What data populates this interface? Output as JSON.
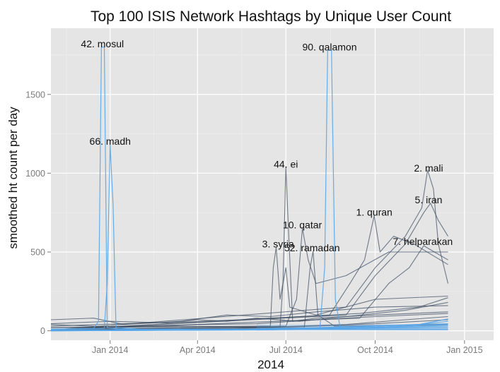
{
  "chart_data": {
    "type": "line",
    "title": "Top 100 ISIS Network Hashtags by Unique User Count",
    "xlabel": "2014",
    "ylabel": "smoothed ht count per day",
    "x_axis_type": "date",
    "xlim": [
      "2013-11-01",
      "2015-01-31"
    ],
    "ylim": [
      -60,
      1920
    ],
    "x_ticks": [
      {
        "date": "2014-01-01",
        "label": "Jan 2014"
      },
      {
        "date": "2014-04-01",
        "label": "Apr 2014"
      },
      {
        "date": "2014-07-01",
        "label": "Jul 2014"
      },
      {
        "date": "2014-10-01",
        "label": "Oct 2014"
      },
      {
        "date": "2015-01-01",
        "label": "Jan 2015"
      }
    ],
    "y_ticks": [
      0,
      500,
      1000,
      1500
    ],
    "grid": true,
    "background": "#e5e5e5",
    "line_color_dark": "#3b4a5f",
    "line_color_light": "#56a5e8",
    "annotations": [
      {
        "label": "42. mosul",
        "date": "2013-12-24",
        "y": 1800
      },
      {
        "label": "66. madh",
        "date": "2014-01-01",
        "y": 1180
      },
      {
        "label": "90. qalamon",
        "date": "2014-08-15",
        "y": 1780
      },
      {
        "label": "44. ei",
        "date": "2014-07-01",
        "y": 1035
      },
      {
        "label": "3. syria",
        "date": "2014-06-23",
        "y": 530
      },
      {
        "label": "10. qatar",
        "date": "2014-07-18",
        "y": 650
      },
      {
        "label": "52. ramadan",
        "date": "2014-07-28",
        "y": 505
      },
      {
        "label": "1. quran",
        "date": "2014-09-30",
        "y": 730
      },
      {
        "label": "2. mali",
        "date": "2014-11-25",
        "y": 1010
      },
      {
        "label": "5. iran",
        "date": "2014-11-25",
        "y": 810
      },
      {
        "label": "7. helparakan",
        "date": "2014-11-19",
        "y": 545
      }
    ],
    "series": [
      {
        "highlight": true,
        "values": [
          [
            "2013-11-01",
            10
          ],
          [
            "2013-12-15",
            15
          ],
          [
            "2013-12-20",
            60
          ],
          [
            "2013-12-23",
            1800
          ],
          [
            "2013-12-26",
            1800
          ],
          [
            "2013-12-29",
            20
          ],
          [
            "2014-01-10",
            10
          ],
          [
            "2014-12-15",
            10
          ]
        ]
      },
      {
        "highlight": true,
        "values": [
          [
            "2013-11-01",
            8
          ],
          [
            "2013-12-26",
            15
          ],
          [
            "2013-12-29",
            300
          ],
          [
            "2014-01-01",
            1180
          ],
          [
            "2014-01-04",
            800
          ],
          [
            "2014-01-07",
            20
          ],
          [
            "2014-02-01",
            10
          ],
          [
            "2014-12-15",
            8
          ]
        ]
      },
      {
        "highlight": true,
        "values": [
          [
            "2013-11-01",
            5
          ],
          [
            "2014-08-05",
            12
          ],
          [
            "2014-08-10",
            400
          ],
          [
            "2014-08-13",
            1780
          ],
          [
            "2014-08-17",
            1780
          ],
          [
            "2014-08-21",
            200
          ],
          [
            "2014-08-26",
            15
          ],
          [
            "2014-12-15",
            20
          ]
        ]
      },
      {
        "highlight": false,
        "values": [
          [
            "2013-11-01",
            10
          ],
          [
            "2014-06-25",
            25
          ],
          [
            "2014-06-28",
            300
          ],
          [
            "2014-07-01",
            1040
          ],
          [
            "2014-07-04",
            600
          ],
          [
            "2014-07-08",
            60
          ],
          [
            "2014-08-01",
            80
          ],
          [
            "2014-10-01",
            100
          ],
          [
            "2014-12-15",
            120
          ]
        ]
      },
      {
        "highlight": false,
        "values": [
          [
            "2013-11-01",
            20
          ],
          [
            "2014-06-15",
            30
          ],
          [
            "2014-06-18",
            400
          ],
          [
            "2014-06-21",
            530
          ],
          [
            "2014-06-25",
            200
          ],
          [
            "2014-07-01",
            400
          ],
          [
            "2014-07-05",
            150
          ],
          [
            "2014-08-01",
            100
          ],
          [
            "2014-10-01",
            200
          ],
          [
            "2014-12-15",
            220
          ]
        ]
      },
      {
        "highlight": false,
        "values": [
          [
            "2013-11-01",
            5
          ],
          [
            "2014-07-01",
            30
          ],
          [
            "2014-07-12",
            200
          ],
          [
            "2014-07-18",
            650
          ],
          [
            "2014-07-24",
            450
          ],
          [
            "2014-08-01",
            300
          ],
          [
            "2014-09-01",
            350
          ],
          [
            "2014-10-15",
            500
          ],
          [
            "2014-12-15",
            500
          ]
        ]
      },
      {
        "highlight": false,
        "values": [
          [
            "2013-11-01",
            5
          ],
          [
            "2014-07-20",
            20
          ],
          [
            "2014-07-26",
            400
          ],
          [
            "2014-07-29",
            505
          ],
          [
            "2014-08-03",
            100
          ],
          [
            "2014-08-20",
            30
          ],
          [
            "2014-12-15",
            40
          ]
        ]
      },
      {
        "highlight": false,
        "values": [
          [
            "2013-11-01",
            5
          ],
          [
            "2014-08-15",
            100
          ],
          [
            "2014-09-05",
            300
          ],
          [
            "2014-09-20",
            450
          ],
          [
            "2014-09-30",
            730
          ],
          [
            "2014-10-06",
            500
          ],
          [
            "2014-10-20",
            600
          ],
          [
            "2014-11-10",
            550
          ],
          [
            "2014-12-15",
            420
          ]
        ]
      },
      {
        "highlight": false,
        "values": [
          [
            "2013-11-01",
            5
          ],
          [
            "2014-09-01",
            150
          ],
          [
            "2014-10-01",
            400
          ],
          [
            "2014-11-01",
            600
          ],
          [
            "2014-11-18",
            780
          ],
          [
            "2014-11-24",
            1020
          ],
          [
            "2014-11-30",
            900
          ],
          [
            "2014-12-05",
            550
          ],
          [
            "2014-12-15",
            300
          ]
        ]
      },
      {
        "highlight": false,
        "values": [
          [
            "2013-11-01",
            5
          ],
          [
            "2014-09-01",
            100
          ],
          [
            "2014-10-01",
            350
          ],
          [
            "2014-11-01",
            550
          ],
          [
            "2014-11-20",
            750
          ],
          [
            "2014-11-27",
            810
          ],
          [
            "2014-12-05",
            700
          ],
          [
            "2014-12-15",
            600
          ]
        ]
      },
      {
        "highlight": false,
        "values": [
          [
            "2013-11-01",
            5
          ],
          [
            "2014-09-15",
            80
          ],
          [
            "2014-10-15",
            300
          ],
          [
            "2014-11-05",
            400
          ],
          [
            "2014-11-20",
            540
          ],
          [
            "2014-12-01",
            500
          ],
          [
            "2014-12-15",
            450
          ]
        ]
      },
      {
        "highlight": false,
        "values": [
          [
            "2013-11-01",
            45
          ],
          [
            "2014-01-01",
            60
          ],
          [
            "2014-03-01",
            50
          ],
          [
            "2014-04-01",
            70
          ],
          [
            "2014-05-01",
            60
          ],
          [
            "2014-06-01",
            80
          ],
          [
            "2014-07-15",
            60
          ],
          [
            "2014-09-01",
            90
          ],
          [
            "2014-11-01",
            130
          ],
          [
            "2014-12-15",
            180
          ]
        ]
      },
      {
        "highlight": false,
        "values": [
          [
            "2013-11-01",
            70
          ],
          [
            "2013-12-15",
            80
          ],
          [
            "2014-01-15",
            40
          ],
          [
            "2014-03-15",
            60
          ],
          [
            "2014-05-01",
            100
          ],
          [
            "2014-06-15",
            90
          ],
          [
            "2014-08-01",
            120
          ],
          [
            "2014-10-01",
            150
          ],
          [
            "2014-12-15",
            160
          ]
        ]
      },
      {
        "highlight": false,
        "values": [
          [
            "2013-11-01",
            20
          ],
          [
            "2014-02-01",
            30
          ],
          [
            "2014-04-15",
            40
          ],
          [
            "2014-06-01",
            45
          ],
          [
            "2014-08-01",
            70
          ],
          [
            "2014-10-01",
            90
          ],
          [
            "2014-12-15",
            110
          ]
        ]
      },
      {
        "highlight": false,
        "values": [
          [
            "2013-11-01",
            40
          ],
          [
            "2014-01-01",
            25
          ],
          [
            "2014-03-01",
            30
          ],
          [
            "2014-06-01",
            20
          ],
          [
            "2014-09-01",
            40
          ],
          [
            "2014-11-01",
            70
          ],
          [
            "2014-12-15",
            90
          ]
        ]
      },
      {
        "highlight": false,
        "values": [
          [
            "2013-11-01",
            30
          ],
          [
            "2014-01-15",
            45
          ],
          [
            "2014-03-15",
            55
          ],
          [
            "2014-05-15",
            70
          ],
          [
            "2014-07-15",
            90
          ],
          [
            "2014-09-15",
            110
          ],
          [
            "2014-11-15",
            150
          ],
          [
            "2014-12-15",
            210
          ]
        ]
      },
      {
        "highlight": true,
        "values": [
          [
            "2013-11-01",
            0
          ],
          [
            "2014-06-01",
            5
          ],
          [
            "2014-09-01",
            15
          ],
          [
            "2014-11-01",
            30
          ],
          [
            "2014-12-15",
            60
          ]
        ]
      },
      {
        "highlight": true,
        "values": [
          [
            "2013-11-01",
            2
          ],
          [
            "2014-05-01",
            8
          ],
          [
            "2014-08-01",
            20
          ],
          [
            "2014-10-15",
            35
          ],
          [
            "2014-12-15",
            45
          ]
        ]
      },
      {
        "highlight": true,
        "values": [
          [
            "2013-11-01",
            0
          ],
          [
            "2014-07-01",
            10
          ],
          [
            "2014-09-15",
            25
          ],
          [
            "2014-11-15",
            40
          ],
          [
            "2014-12-15",
            75
          ]
        ]
      },
      {
        "highlight": true,
        "values": [
          [
            "2013-11-01",
            1
          ],
          [
            "2014-04-01",
            4
          ],
          [
            "2014-08-15",
            12
          ],
          [
            "2014-10-15",
            22
          ],
          [
            "2014-12-15",
            30
          ]
        ]
      },
      {
        "highlight": true,
        "values": [
          [
            "2013-11-01",
            0
          ],
          [
            "2014-06-15",
            6
          ],
          [
            "2014-09-01",
            18
          ],
          [
            "2014-11-01",
            28
          ],
          [
            "2014-12-15",
            38
          ]
        ]
      },
      {
        "highlight": false,
        "values": [
          [
            "2013-11-01",
            5
          ],
          [
            "2014-05-01",
            15
          ],
          [
            "2014-08-01",
            30
          ],
          [
            "2014-10-01",
            45
          ],
          [
            "2014-12-15",
            70
          ]
        ]
      }
    ]
  }
}
